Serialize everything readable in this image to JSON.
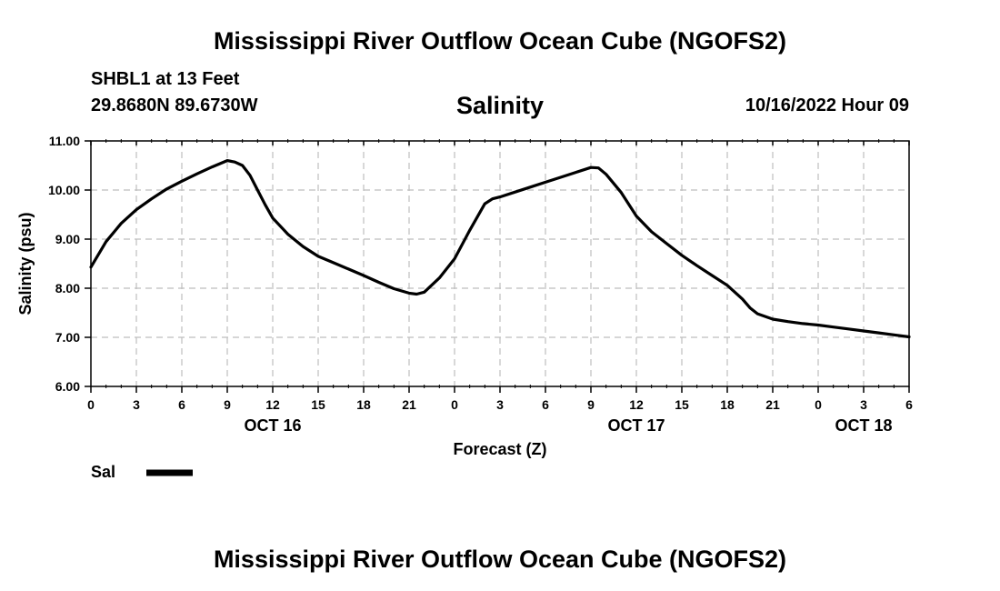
{
  "header": {
    "title": "Mississippi River Outflow Ocean Cube (NGOFS2)",
    "station": "SHBL1 at 13 Feet",
    "coordinates": "29.8680N  89.6730W",
    "variable": "Salinity",
    "run_time": "10/16/2022 Hour 09"
  },
  "footer": {
    "title": "Mississippi River Outflow Ocean Cube (NGOFS2)"
  },
  "chart_data": {
    "type": "line",
    "title": "Salinity",
    "xlabel": "Forecast (Z)",
    "ylabel": "Salinity (psu)",
    "ylim": [
      6.0,
      11.0
    ],
    "y_ticks": [
      "6.00",
      "7.00",
      "8.00",
      "9.00",
      "10.00",
      "11.00"
    ],
    "x_range_hours": [
      0,
      54
    ],
    "x_ticks": [
      "0",
      "3",
      "6",
      "9",
      "12",
      "15",
      "18",
      "21",
      "0",
      "3",
      "6",
      "9",
      "12",
      "15",
      "18",
      "21",
      "0",
      "3",
      "6"
    ],
    "date_labels": [
      {
        "label": "OCT 16",
        "hour": 12
      },
      {
        "label": "OCT 17",
        "hour": 36
      },
      {
        "label": "OCT 18",
        "hour": 51
      }
    ],
    "grid": true,
    "legend": {
      "position": "bottom-left",
      "entries": [
        "Sal"
      ]
    },
    "series": [
      {
        "name": "Sal",
        "color": "#000000",
        "x": [
          0,
          1,
          2,
          3,
          4,
          5,
          6,
          7,
          8,
          9,
          9.5,
          10,
          10.5,
          11,
          11.5,
          12,
          13,
          14,
          15,
          16,
          17,
          18,
          19,
          20,
          21,
          21.5,
          22,
          23,
          24,
          25,
          26,
          26.5,
          27,
          28,
          29,
          30,
          31,
          32,
          33,
          33.5,
          34,
          35,
          36,
          37,
          38,
          39,
          40,
          41,
          42,
          43,
          43.5,
          44,
          45,
          46,
          47,
          48,
          49,
          50,
          51,
          52,
          53,
          54
        ],
        "values": [
          8.43,
          8.95,
          9.32,
          9.6,
          9.82,
          10.02,
          10.18,
          10.33,
          10.47,
          10.6,
          10.57,
          10.5,
          10.3,
          10.0,
          9.7,
          9.43,
          9.1,
          8.85,
          8.65,
          8.52,
          8.39,
          8.26,
          8.12,
          7.99,
          7.9,
          7.88,
          7.92,
          8.21,
          8.6,
          9.18,
          9.72,
          9.82,
          9.86,
          9.96,
          10.06,
          10.16,
          10.26,
          10.36,
          10.46,
          10.45,
          10.32,
          9.95,
          9.47,
          9.15,
          8.91,
          8.67,
          8.46,
          8.26,
          8.06,
          7.78,
          7.6,
          7.48,
          7.37,
          7.32,
          7.28,
          7.25,
          7.21,
          7.17,
          7.13,
          7.09,
          7.05,
          7.01
        ]
      }
    ]
  }
}
